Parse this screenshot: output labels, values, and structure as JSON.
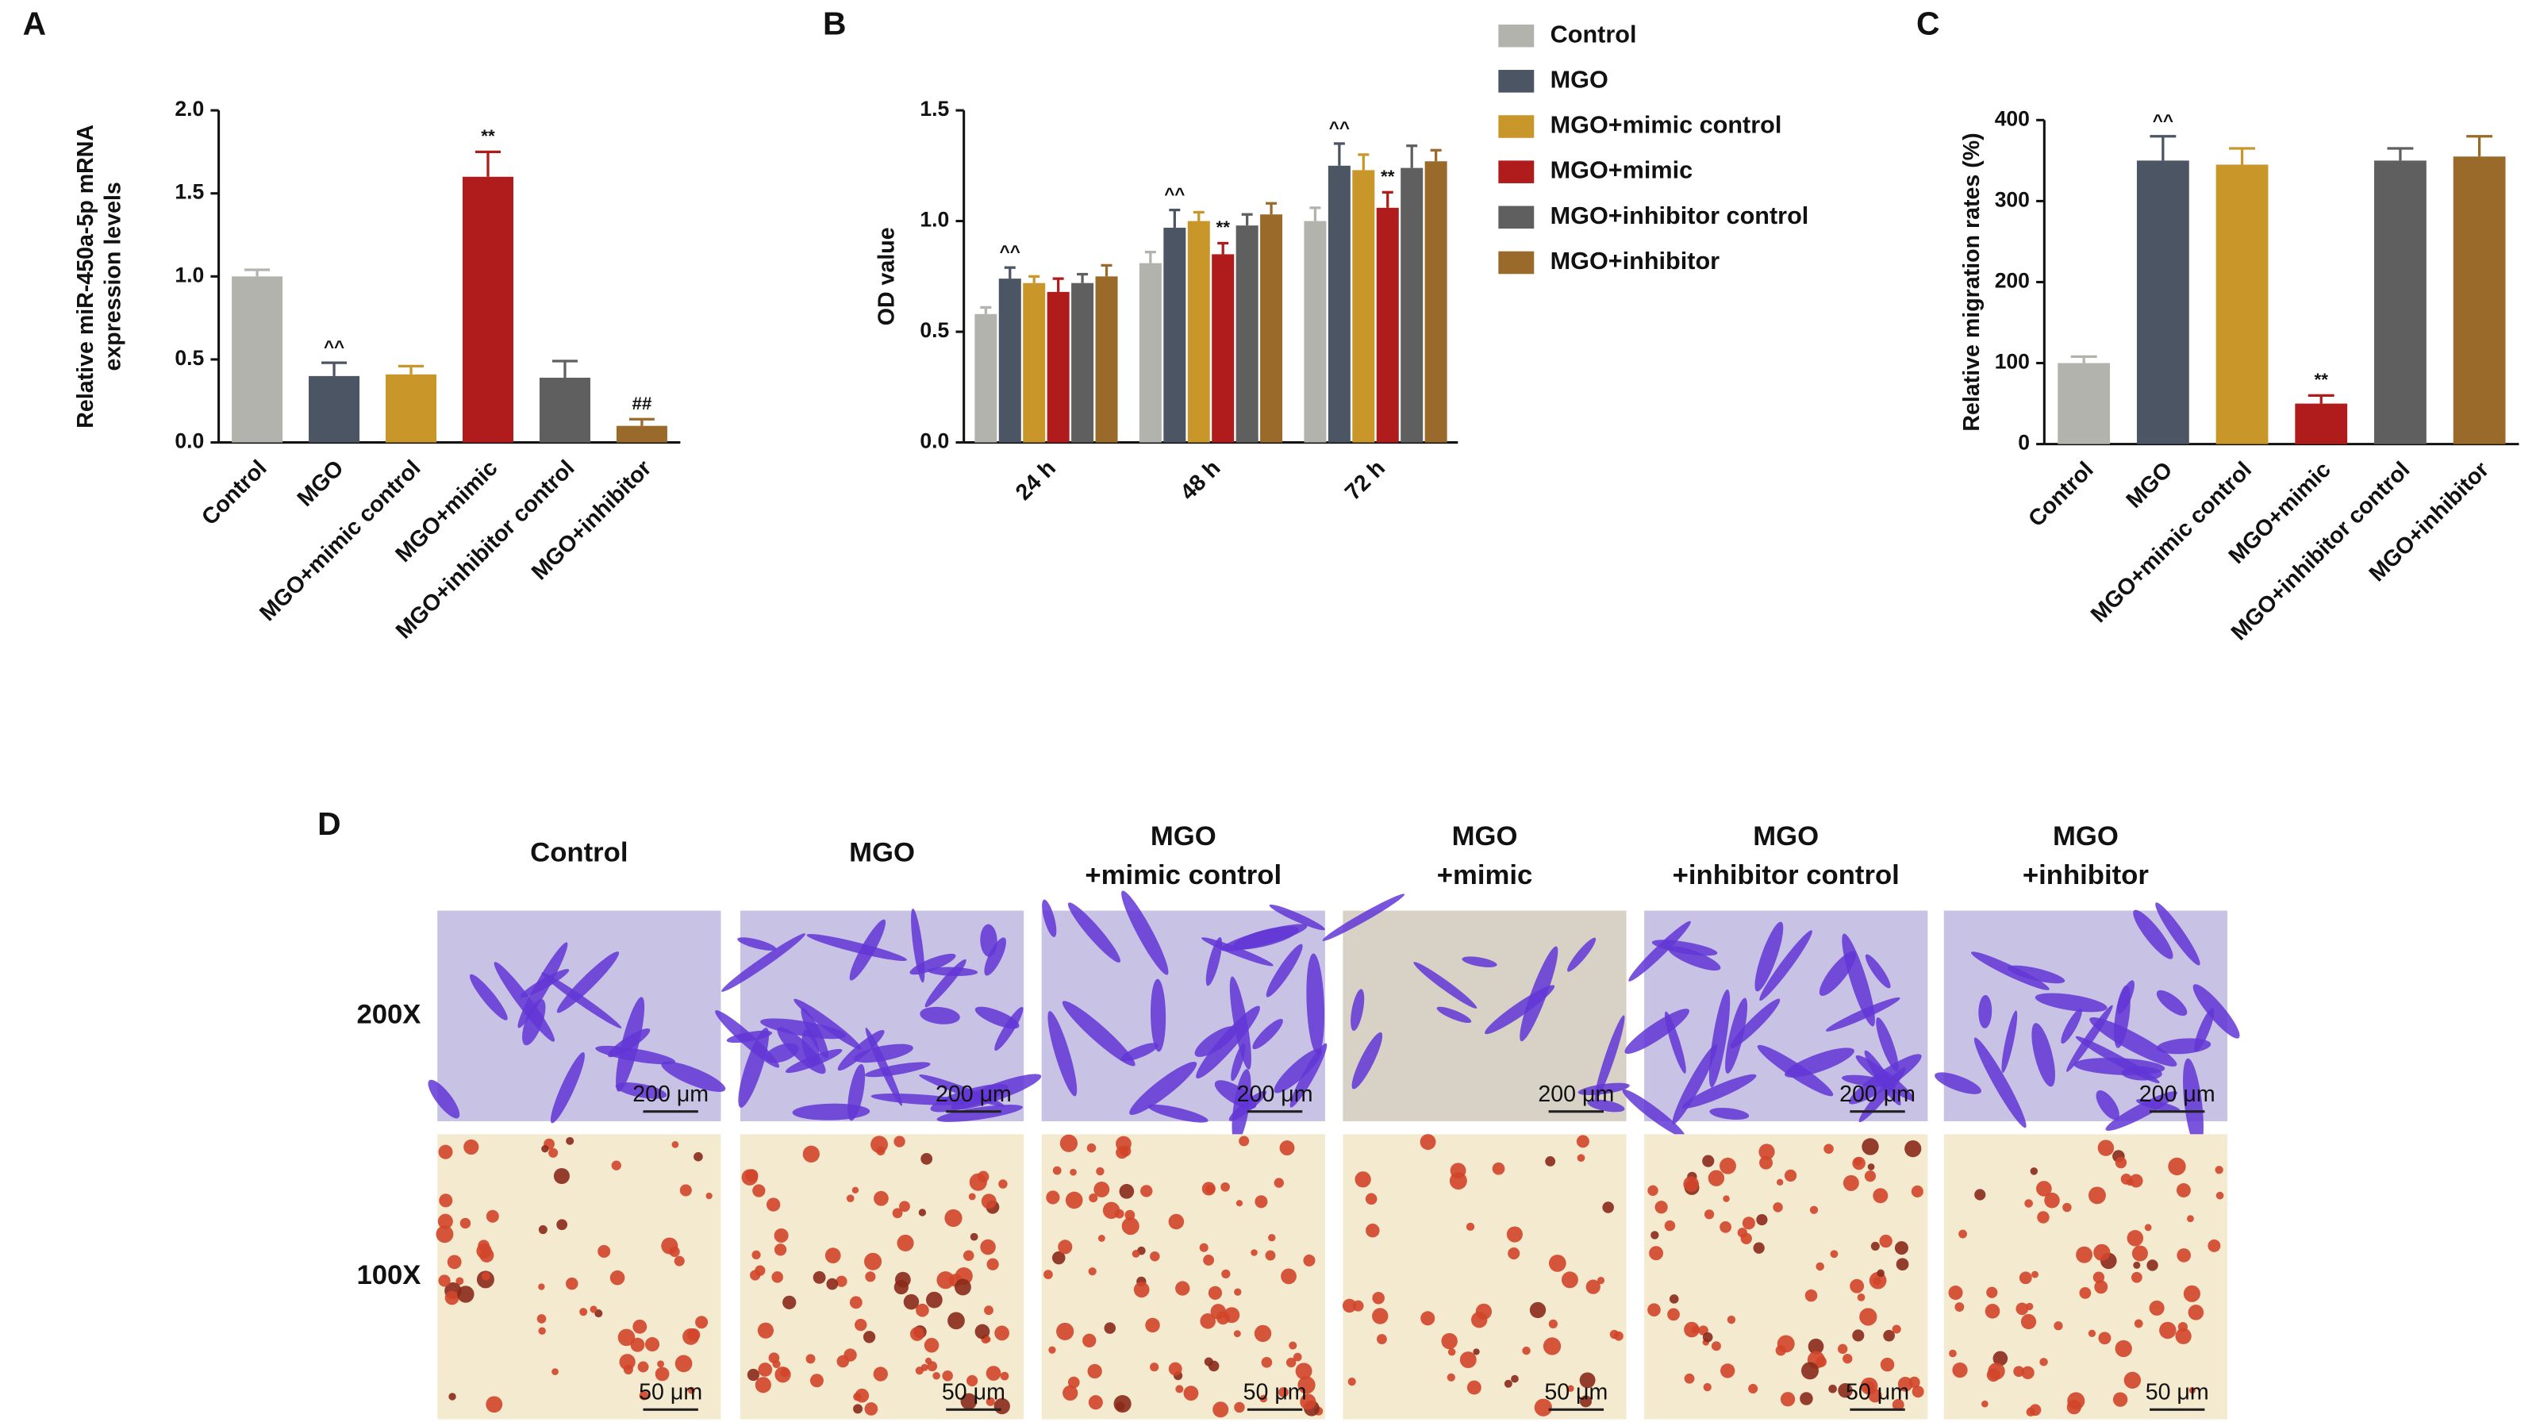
{
  "chart_data": [
    {
      "type": "bar",
      "panel": "A",
      "ylabel": [
        "Relative miR-450a-5p mRNA",
        "expression levels"
      ],
      "categories": [
        "Control",
        "MGO",
        "MGO+mimic control",
        "MGO+mimic",
        "MGO+inhibitor control",
        "MGO+inhibitor"
      ],
      "values": [
        1.0,
        0.4,
        0.41,
        1.6,
        0.39,
        0.1
      ],
      "errors": [
        0.04,
        0.08,
        0.05,
        0.15,
        0.1,
        0.04
      ],
      "significance": [
        null,
        "^^",
        null,
        "**",
        null,
        "##"
      ],
      "colors": [
        "#b3b3ad",
        "#4b5563",
        "#c9962a",
        "#b01c1c",
        "#5f5f5f",
        "#9a6a2a"
      ],
      "ylim": [
        0,
        2
      ],
      "yticks": [
        {
          "value": 0,
          "label": "0.0"
        },
        0.5,
        {
          "value": 1,
          "label": "1.0"
        },
        1.5,
        {
          "value": 2,
          "label": "2.0"
        }
      ]
    },
    {
      "type": "bar",
      "panel": "B",
      "ylabel": [
        "OD value"
      ],
      "categories": [
        "24 h",
        "48 h",
        "72 h"
      ],
      "series": [
        {
          "name": "Control",
          "color": "#b3b3ad",
          "values": [
            0.58,
            0.81,
            1.0
          ],
          "errors": [
            0.03,
            0.05,
            0.06
          ],
          "significance": [
            null,
            null,
            null
          ]
        },
        {
          "name": "MGO",
          "color": "#4b5563",
          "values": [
            0.74,
            0.97,
            1.25
          ],
          "errors": [
            0.05,
            0.08,
            0.1
          ],
          "significance": [
            "^^",
            "^^",
            "^^"
          ]
        },
        {
          "name": "MGO+mimic control",
          "color": "#c9962a",
          "values": [
            0.72,
            1.0,
            1.23
          ],
          "errors": [
            0.03,
            0.04,
            0.07
          ],
          "significance": [
            null,
            null,
            null
          ]
        },
        {
          "name": "MGO+mimic",
          "color": "#b01c1c",
          "values": [
            0.68,
            0.85,
            1.06
          ],
          "errors": [
            0.06,
            0.05,
            0.07
          ],
          "significance": [
            null,
            "**",
            "**"
          ]
        },
        {
          "name": "MGO+inhibitor control",
          "color": "#5f5f5f",
          "values": [
            0.72,
            0.98,
            1.24
          ],
          "errors": [
            0.04,
            0.05,
            0.1
          ],
          "significance": [
            null,
            null,
            null
          ]
        },
        {
          "name": "MGO+inhibitor",
          "color": "#9a6a2a",
          "values": [
            0.75,
            1.03,
            1.27
          ],
          "errors": [
            0.05,
            0.05,
            0.05
          ],
          "significance": [
            null,
            null,
            null
          ]
        }
      ],
      "ylim": [
        0,
        1.5
      ],
      "yticks": [
        {
          "value": 0,
          "label": "0.0"
        },
        0.5,
        {
          "value": 1,
          "label": "1.0"
        },
        1.5
      ]
    },
    {
      "type": "bar",
      "panel": "C",
      "ylabel": [
        "Relative migration rates (%)"
      ],
      "categories": [
        "Control",
        "MGO",
        "MGO+mimic control",
        "MGO+mimic",
        "MGO+inhibitor control",
        "MGO+inhibitor"
      ],
      "values": [
        100,
        350,
        345,
        50,
        350,
        355
      ],
      "errors": [
        8,
        30,
        20,
        10,
        15,
        25
      ],
      "significance": [
        null,
        "^^",
        null,
        "**",
        null,
        null
      ],
      "colors": [
        "#b3b3ad",
        "#4b5563",
        "#c9962a",
        "#b01c1c",
        "#5f5f5f",
        "#9a6a2a"
      ],
      "ylim": [
        0,
        400
      ],
      "yticks": [
        0,
        100,
        200,
        300,
        400
      ]
    }
  ],
  "panel_d": {
    "panel": "D",
    "columns": [
      [
        "Control"
      ],
      [
        "MGO"
      ],
      [
        "MGO",
        "+mimic control"
      ],
      [
        "MGO",
        "+mimic"
      ],
      [
        "MGO",
        "+inhibitor control"
      ],
      [
        "MGO",
        "+inhibitor"
      ]
    ],
    "rows": [
      "200X",
      "100X"
    ],
    "scale_bars": [
      "200 μm",
      "50 μm"
    ]
  }
}
